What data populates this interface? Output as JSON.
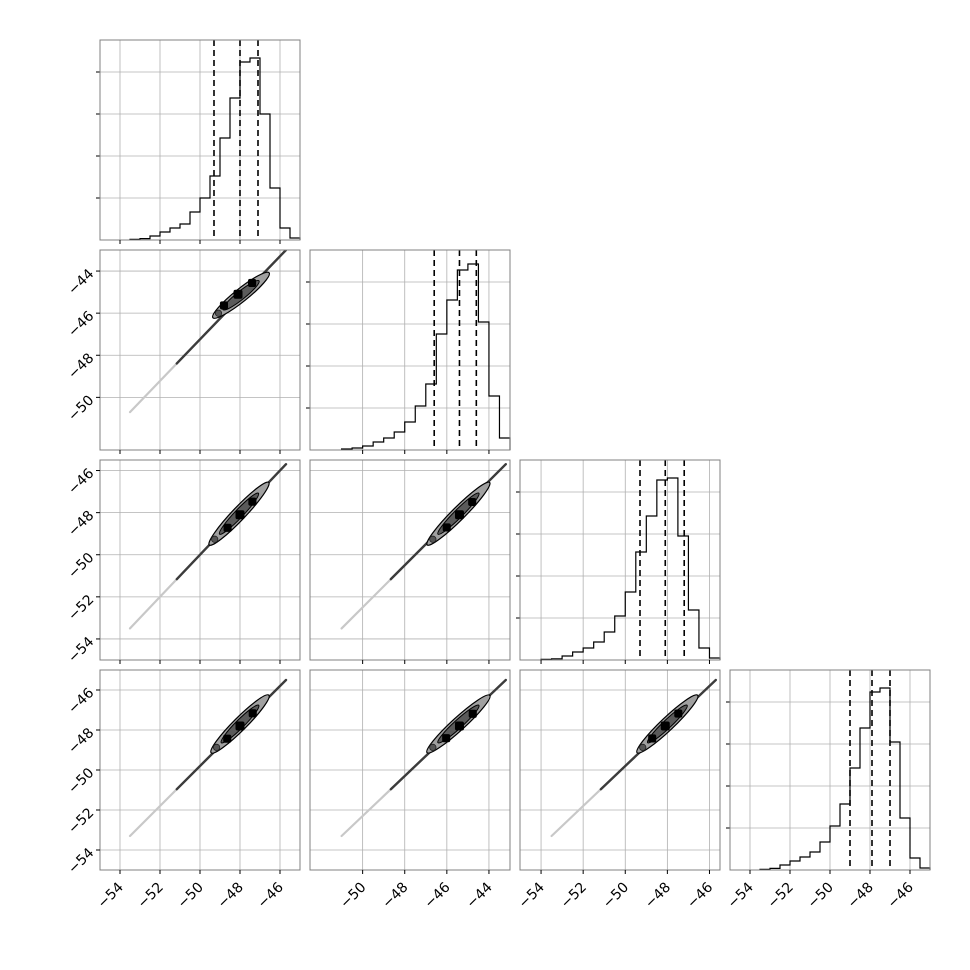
{
  "chart_data": {
    "type": "corner",
    "n_params": 4,
    "grid": true,
    "colors": {
      "line": "#000000",
      "grid": "#b0b0b0",
      "frame": "#808080"
    },
    "axes": [
      {
        "range": [
          -55.0,
          -45.0
        ],
        "ticks": [
          -54,
          -52,
          -50,
          -48,
          -46
        ],
        "tick_labels": [
          "−54",
          "−52",
          "−50",
          "−48",
          "−46"
        ]
      },
      {
        "range": [
          -52.5,
          -43.0
        ],
        "ticks": [
          -50,
          -48,
          -46,
          -44
        ],
        "tick_labels": [
          "−50",
          "−48",
          "−46",
          "−44"
        ]
      },
      {
        "range": [
          -55.0,
          -45.5
        ],
        "ticks": [
          -54,
          -52,
          -50,
          -48,
          -46
        ],
        "tick_labels": [
          "−54",
          "−52",
          "−50",
          "−48",
          "−46"
        ]
      },
      {
        "range": [
          -55.0,
          -45.0
        ],
        "ticks": [
          -54,
          -52,
          -50,
          -48,
          -46
        ],
        "tick_labels": [
          "−54",
          "−52",
          "−50",
          "−48",
          "−46"
        ]
      }
    ],
    "histograms": [
      {
        "param": 0,
        "quantiles": [
          -49.3,
          -48.0,
          -47.1
        ],
        "bins": [
          -53.5,
          -53.0,
          -52.5,
          -52.0,
          -51.5,
          -51.0,
          -50.5,
          -50.0,
          -49.5,
          -49.0,
          -48.5,
          -48.0,
          -47.5,
          -47.0,
          -46.5,
          -46.0,
          -45.5,
          -45.0
        ],
        "counts": [
          0.003,
          0.007,
          0.02,
          0.04,
          0.06,
          0.08,
          0.14,
          0.21,
          0.32,
          0.51,
          0.71,
          0.89,
          0.91,
          0.63,
          0.26,
          0.06,
          0.01
        ]
      },
      {
        "param": 1,
        "quantiles": [
          -46.6,
          -45.4,
          -44.6
        ],
        "bins": [
          -51.0,
          -50.5,
          -50.0,
          -49.5,
          -49.0,
          -48.5,
          -48.0,
          -47.5,
          -47.0,
          -46.5,
          -46.0,
          -45.5,
          -45.0,
          -44.5,
          -44.0,
          -43.5,
          -43.0
        ],
        "counts": [
          0.005,
          0.01,
          0.02,
          0.04,
          0.06,
          0.09,
          0.14,
          0.22,
          0.33,
          0.58,
          0.75,
          0.9,
          0.93,
          0.64,
          0.27,
          0.06
        ]
      },
      {
        "param": 2,
        "quantiles": [
          -49.3,
          -48.1,
          -47.2
        ],
        "bins": [
          -54.0,
          -53.5,
          -53.0,
          -52.5,
          -52.0,
          -51.5,
          -51.0,
          -50.5,
          -50.0,
          -49.5,
          -49.0,
          -48.5,
          -48.0,
          -47.5,
          -47.0,
          -46.5,
          -46.0,
          -45.5
        ],
        "counts": [
          0.003,
          0.006,
          0.02,
          0.04,
          0.06,
          0.09,
          0.14,
          0.22,
          0.34,
          0.54,
          0.72,
          0.9,
          0.91,
          0.62,
          0.25,
          0.06,
          0.01
        ]
      },
      {
        "param": 3,
        "quantiles": [
          -49.0,
          -47.9,
          -47.0
        ],
        "bins": [
          -53.5,
          -53.0,
          -52.5,
          -52.0,
          -51.5,
          -51.0,
          -50.5,
          -50.0,
          -49.5,
          -49.0,
          -48.5,
          -48.0,
          -47.5,
          -47.0,
          -46.5,
          -46.0,
          -45.5,
          -45.0
        ],
        "counts": [
          0.003,
          0.008,
          0.025,
          0.045,
          0.065,
          0.09,
          0.14,
          0.22,
          0.33,
          0.51,
          0.71,
          0.89,
          0.91,
          0.64,
          0.26,
          0.06,
          0.01
        ]
      }
    ],
    "scatter_panels": [
      {
        "row": 1,
        "col": 0,
        "min": [
          -53.5,
          -50.7
        ],
        "max": [
          -45.7,
          -43.0
        ],
        "lower": [
          -49.2,
          -46.1
        ],
        "upper": [
          -46.7,
          -44.2
        ],
        "center": [
          -48.1,
          -45.1
        ]
      },
      {
        "row": 2,
        "col": 0,
        "min": [
          -53.5,
          -53.5
        ],
        "max": [
          -45.7,
          -45.7
        ],
        "lower": [
          -49.4,
          -49.4
        ],
        "upper": [
          -46.7,
          -46.7
        ],
        "center": [
          -48.0,
          -48.1
        ]
      },
      {
        "row": 2,
        "col": 1,
        "min": [
          -51.0,
          -53.5
        ],
        "max": [
          -43.2,
          -45.7
        ],
        "lower": [
          -46.8,
          -49.4
        ],
        "upper": [
          -44.1,
          -46.7
        ],
        "center": [
          -45.4,
          -48.1
        ]
      },
      {
        "row": 3,
        "col": 0,
        "min": [
          -53.5,
          -53.3
        ],
        "max": [
          -45.7,
          -45.5
        ],
        "lower": [
          -49.3,
          -49.0
        ],
        "upper": [
          -46.7,
          -46.4
        ],
        "center": [
          -48.0,
          -47.8
        ]
      },
      {
        "row": 3,
        "col": 1,
        "min": [
          -51.0,
          -53.3
        ],
        "max": [
          -43.2,
          -45.5
        ],
        "lower": [
          -46.8,
          -49.0
        ],
        "upper": [
          -44.1,
          -46.4
        ],
        "center": [
          -45.4,
          -47.8
        ]
      },
      {
        "row": 3,
        "col": 2,
        "min": [
          -53.5,
          -53.3
        ],
        "max": [
          -45.7,
          -45.5
        ],
        "lower": [
          -49.3,
          -49.0
        ],
        "upper": [
          -46.7,
          -46.4
        ],
        "center": [
          -48.1,
          -47.8
        ]
      }
    ]
  }
}
